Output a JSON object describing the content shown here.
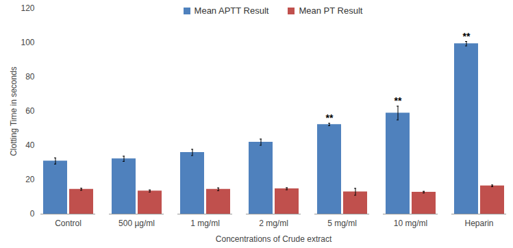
{
  "chart_data": {
    "type": "bar",
    "x_label": "Concentrations of Crude extract",
    "y_label": "Clotting Time in seconds",
    "categories": [
      "Control",
      "500 µg/ml",
      "1 mg/ml",
      "2 mg/ml",
      "5 mg/ml",
      "10 mg/ml",
      "Heparin"
    ],
    "series": [
      {
        "name": "Mean APTT Result",
        "color": "#4F81BD",
        "values": [
          31,
          32.3,
          36,
          42,
          52.3,
          59,
          99.5
        ],
        "errors": [
          1.8,
          1.5,
          1.8,
          1.8,
          0.7,
          4,
          1.3
        ]
      },
      {
        "name": "Mean PT Result",
        "color": "#C0504D",
        "values": [
          14.5,
          13.5,
          14.5,
          14.8,
          13,
          12.8,
          16.5
        ],
        "errors": [
          0.6,
          0.6,
          0.8,
          0.6,
          2,
          0.5,
          0.5
        ]
      }
    ],
    "annotations": [
      {
        "category": "5 mg/ml",
        "series": "Mean APTT Result",
        "text": "**"
      },
      {
        "category": "10 mg/ml",
        "series": "Mean APTT Result",
        "text": "**"
      },
      {
        "category": "Heparin",
        "series": "Mean APTT Result",
        "text": "**"
      }
    ],
    "ylim": [
      0,
      120
    ],
    "yticks": [
      0,
      20,
      40,
      60,
      80,
      100,
      120
    ],
    "legend": "top",
    "grid": false
  }
}
